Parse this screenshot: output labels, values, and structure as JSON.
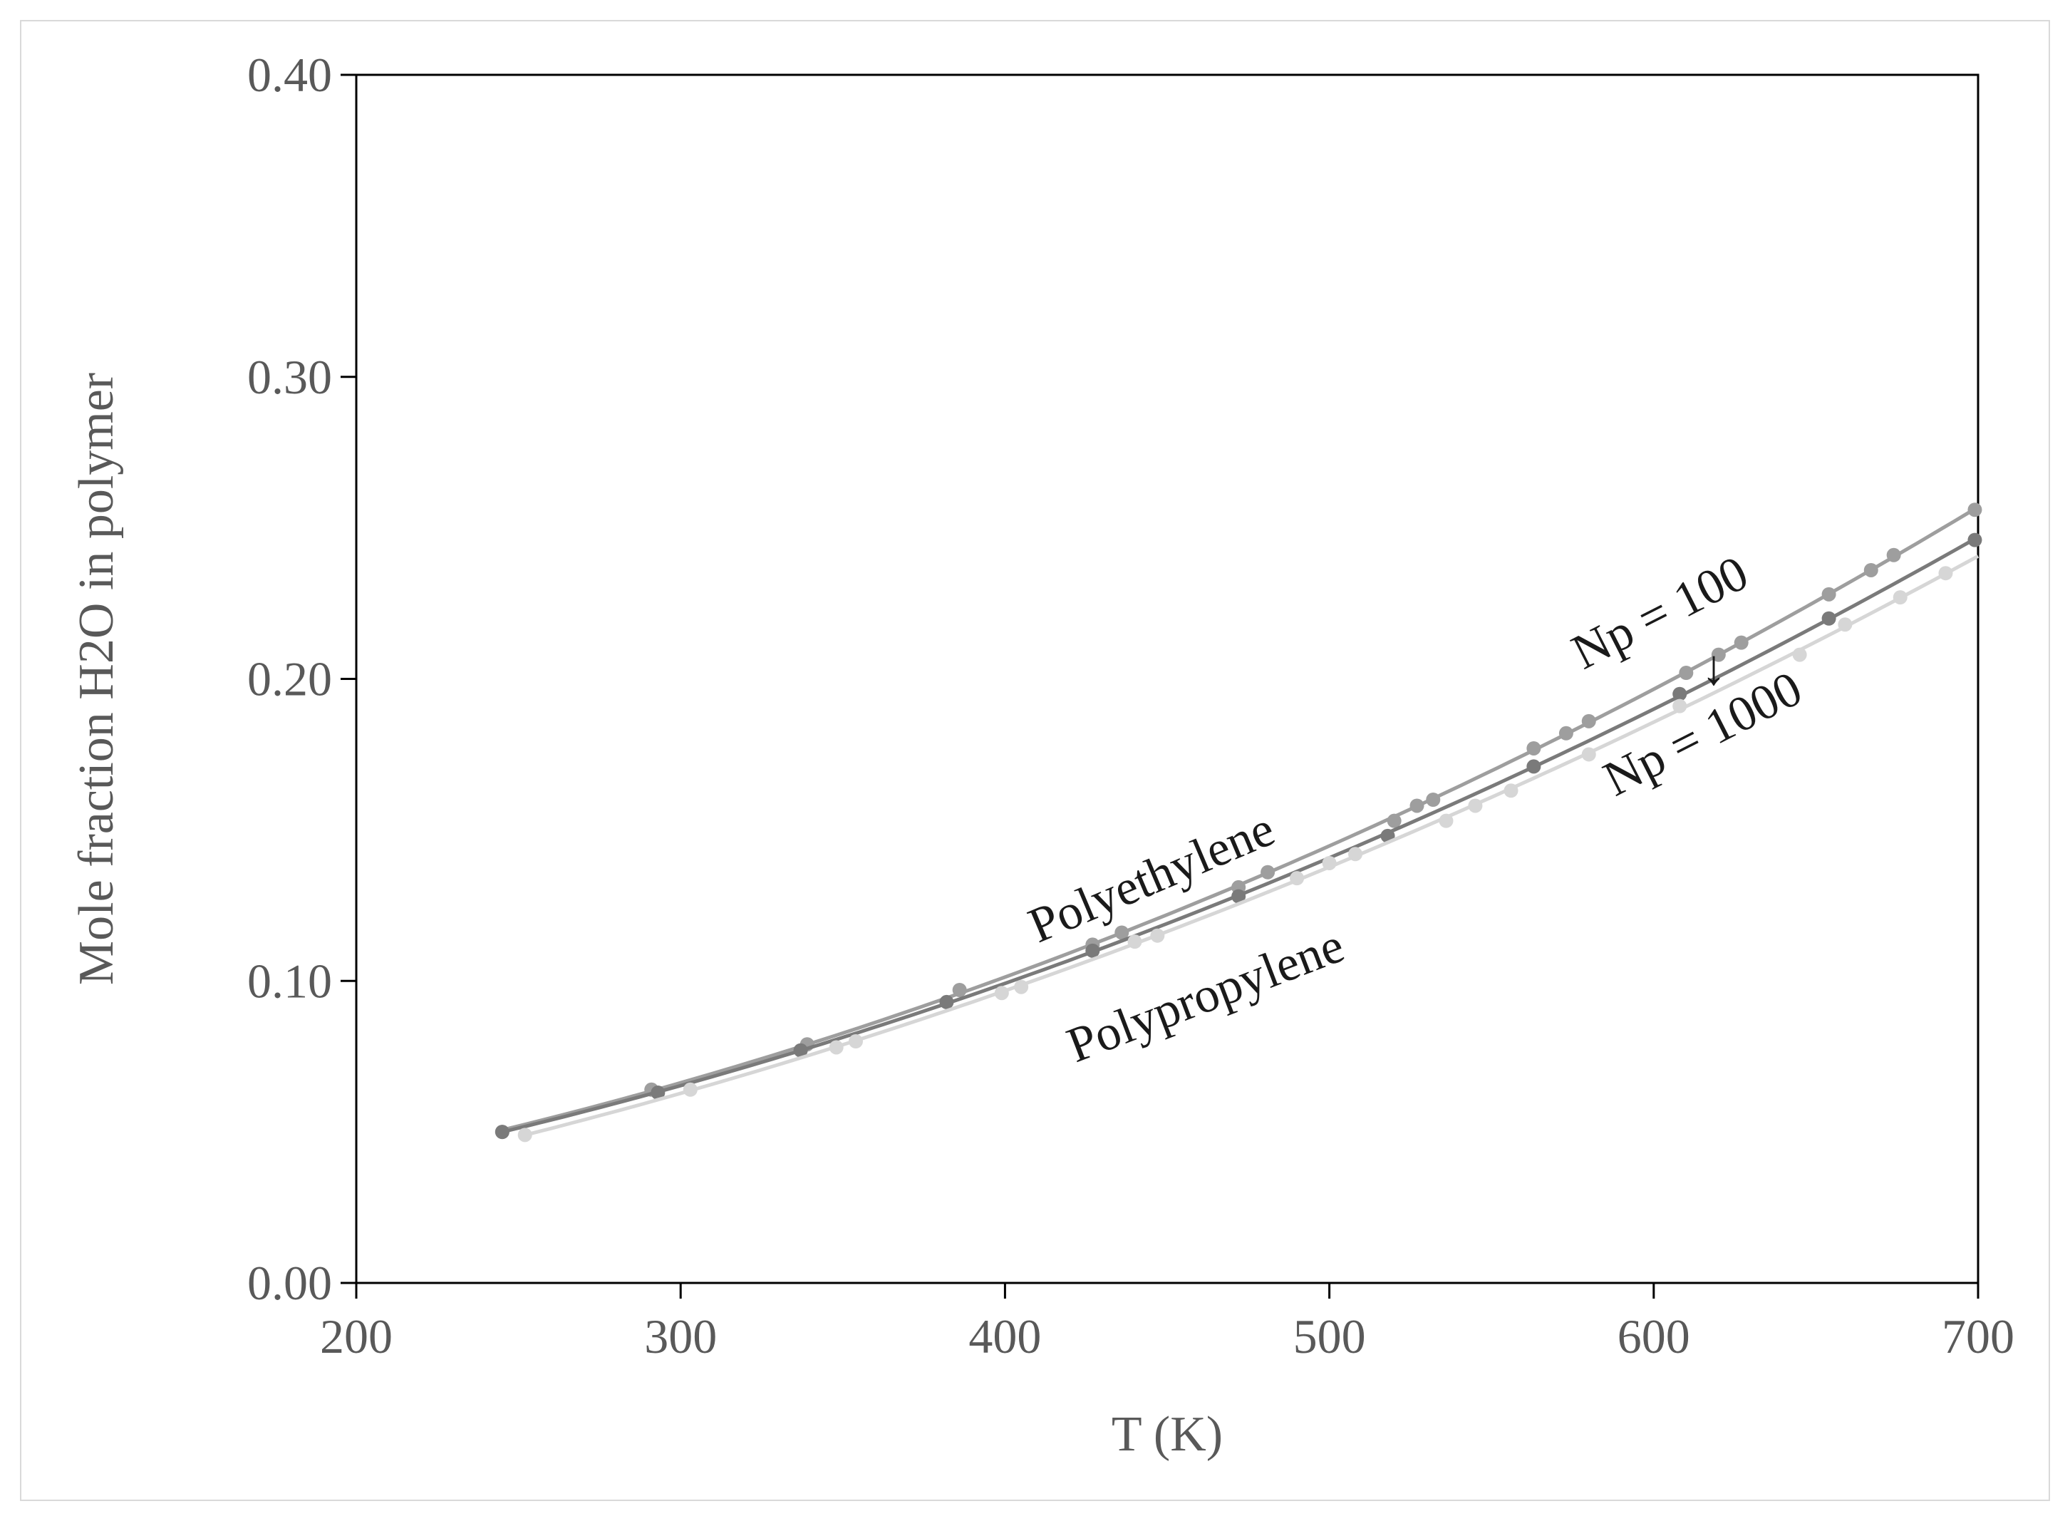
{
  "chart_data": {
    "type": "line",
    "title": "",
    "xlabel": "T (K)",
    "ylabel": "Mole fraction H2O in polymer",
    "xlim": [
      200,
      700
    ],
    "ylim": [
      0,
      0.4
    ],
    "xticks": [
      200,
      300,
      400,
      500,
      600,
      700
    ],
    "xtick_labels": [
      "200",
      "300",
      "400",
      "500",
      "600",
      "700"
    ],
    "yticks": [
      0,
      0.1,
      0.2,
      0.3,
      0.4
    ],
    "ytick_labels": [
      "0.00",
      "0.10",
      "0.20",
      "0.30",
      "0.40"
    ],
    "grid": false,
    "legend": "none",
    "series": [
      {
        "color": "#9e9e9e",
        "x": [
          245,
          291,
          339,
          386,
          427,
          436,
          472,
          481,
          520,
          527,
          532,
          563,
          573,
          580,
          610,
          620,
          627,
          654,
          667,
          674,
          699
        ],
        "y": [
          0.05,
          0.064,
          0.079,
          0.097,
          0.112,
          0.116,
          0.131,
          0.136,
          0.153,
          0.158,
          0.16,
          0.177,
          0.182,
          0.186,
          0.202,
          0.208,
          0.212,
          0.228,
          0.236,
          0.241,
          0.256
        ]
      },
      {
        "color": "#7a7a7a",
        "x": [
          245,
          293,
          337,
          382,
          427,
          472,
          518,
          563,
          608,
          654,
          699
        ],
        "y": [
          0.05,
          0.063,
          0.077,
          0.093,
          0.11,
          0.128,
          0.148,
          0.171,
          0.195,
          0.22,
          0.246
        ]
      },
      {
        "color": "#d6d6d6",
        "x": [
          252,
          303,
          348,
          354,
          399,
          405,
          440,
          447,
          490,
          500,
          508,
          536,
          545,
          556,
          580,
          608,
          645,
          659,
          676,
          690
        ],
        "y": [
          0.049,
          0.064,
          0.078,
          0.08,
          0.096,
          0.098,
          0.113,
          0.115,
          0.134,
          0.139,
          0.142,
          0.153,
          0.158,
          0.163,
          0.175,
          0.191,
          0.208,
          0.218,
          0.227,
          0.235
        ]
      }
    ],
    "annotations": [
      {
        "text": "Polyethylene"
      },
      {
        "text": "Polypropylene"
      },
      {
        "text": "Np = 100"
      },
      {
        "text": "Np = 1000"
      },
      {
        "text": "↓"
      }
    ]
  }
}
